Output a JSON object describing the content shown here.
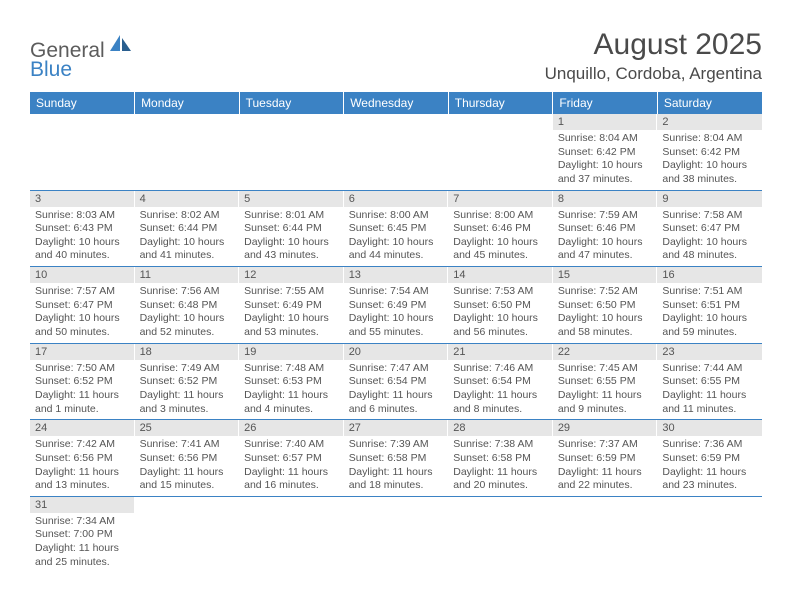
{
  "brand": {
    "name1": "General",
    "name2": "Blue"
  },
  "title": "August 2025",
  "location": "Unquillo, Cordoba, Argentina",
  "colors": {
    "header_bg": "#3b82c4",
    "header_text": "#ffffff",
    "daynum_bg": "#e6e6e6",
    "cell_border": "#3b82c4",
    "text": "#555555",
    "title_text": "#4a4a4a"
  },
  "dayHeaders": [
    "Sunday",
    "Monday",
    "Tuesday",
    "Wednesday",
    "Thursday",
    "Friday",
    "Saturday"
  ],
  "weeks": [
    [
      null,
      null,
      null,
      null,
      null,
      {
        "n": "1",
        "sunrise": "Sunrise: 8:04 AM",
        "sunset": "Sunset: 6:42 PM",
        "daylight": "Daylight: 10 hours and 37 minutes."
      },
      {
        "n": "2",
        "sunrise": "Sunrise: 8:04 AM",
        "sunset": "Sunset: 6:42 PM",
        "daylight": "Daylight: 10 hours and 38 minutes."
      }
    ],
    [
      {
        "n": "3",
        "sunrise": "Sunrise: 8:03 AM",
        "sunset": "Sunset: 6:43 PM",
        "daylight": "Daylight: 10 hours and 40 minutes."
      },
      {
        "n": "4",
        "sunrise": "Sunrise: 8:02 AM",
        "sunset": "Sunset: 6:44 PM",
        "daylight": "Daylight: 10 hours and 41 minutes."
      },
      {
        "n": "5",
        "sunrise": "Sunrise: 8:01 AM",
        "sunset": "Sunset: 6:44 PM",
        "daylight": "Daylight: 10 hours and 43 minutes."
      },
      {
        "n": "6",
        "sunrise": "Sunrise: 8:00 AM",
        "sunset": "Sunset: 6:45 PM",
        "daylight": "Daylight: 10 hours and 44 minutes."
      },
      {
        "n": "7",
        "sunrise": "Sunrise: 8:00 AM",
        "sunset": "Sunset: 6:46 PM",
        "daylight": "Daylight: 10 hours and 45 minutes."
      },
      {
        "n": "8",
        "sunrise": "Sunrise: 7:59 AM",
        "sunset": "Sunset: 6:46 PM",
        "daylight": "Daylight: 10 hours and 47 minutes."
      },
      {
        "n": "9",
        "sunrise": "Sunrise: 7:58 AM",
        "sunset": "Sunset: 6:47 PM",
        "daylight": "Daylight: 10 hours and 48 minutes."
      }
    ],
    [
      {
        "n": "10",
        "sunrise": "Sunrise: 7:57 AM",
        "sunset": "Sunset: 6:47 PM",
        "daylight": "Daylight: 10 hours and 50 minutes."
      },
      {
        "n": "11",
        "sunrise": "Sunrise: 7:56 AM",
        "sunset": "Sunset: 6:48 PM",
        "daylight": "Daylight: 10 hours and 52 minutes."
      },
      {
        "n": "12",
        "sunrise": "Sunrise: 7:55 AM",
        "sunset": "Sunset: 6:49 PM",
        "daylight": "Daylight: 10 hours and 53 minutes."
      },
      {
        "n": "13",
        "sunrise": "Sunrise: 7:54 AM",
        "sunset": "Sunset: 6:49 PM",
        "daylight": "Daylight: 10 hours and 55 minutes."
      },
      {
        "n": "14",
        "sunrise": "Sunrise: 7:53 AM",
        "sunset": "Sunset: 6:50 PM",
        "daylight": "Daylight: 10 hours and 56 minutes."
      },
      {
        "n": "15",
        "sunrise": "Sunrise: 7:52 AM",
        "sunset": "Sunset: 6:50 PM",
        "daylight": "Daylight: 10 hours and 58 minutes."
      },
      {
        "n": "16",
        "sunrise": "Sunrise: 7:51 AM",
        "sunset": "Sunset: 6:51 PM",
        "daylight": "Daylight: 10 hours and 59 minutes."
      }
    ],
    [
      {
        "n": "17",
        "sunrise": "Sunrise: 7:50 AM",
        "sunset": "Sunset: 6:52 PM",
        "daylight": "Daylight: 11 hours and 1 minute."
      },
      {
        "n": "18",
        "sunrise": "Sunrise: 7:49 AM",
        "sunset": "Sunset: 6:52 PM",
        "daylight": "Daylight: 11 hours and 3 minutes."
      },
      {
        "n": "19",
        "sunrise": "Sunrise: 7:48 AM",
        "sunset": "Sunset: 6:53 PM",
        "daylight": "Daylight: 11 hours and 4 minutes."
      },
      {
        "n": "20",
        "sunrise": "Sunrise: 7:47 AM",
        "sunset": "Sunset: 6:54 PM",
        "daylight": "Daylight: 11 hours and 6 minutes."
      },
      {
        "n": "21",
        "sunrise": "Sunrise: 7:46 AM",
        "sunset": "Sunset: 6:54 PM",
        "daylight": "Daylight: 11 hours and 8 minutes."
      },
      {
        "n": "22",
        "sunrise": "Sunrise: 7:45 AM",
        "sunset": "Sunset: 6:55 PM",
        "daylight": "Daylight: 11 hours and 9 minutes."
      },
      {
        "n": "23",
        "sunrise": "Sunrise: 7:44 AM",
        "sunset": "Sunset: 6:55 PM",
        "daylight": "Daylight: 11 hours and 11 minutes."
      }
    ],
    [
      {
        "n": "24",
        "sunrise": "Sunrise: 7:42 AM",
        "sunset": "Sunset: 6:56 PM",
        "daylight": "Daylight: 11 hours and 13 minutes."
      },
      {
        "n": "25",
        "sunrise": "Sunrise: 7:41 AM",
        "sunset": "Sunset: 6:56 PM",
        "daylight": "Daylight: 11 hours and 15 minutes."
      },
      {
        "n": "26",
        "sunrise": "Sunrise: 7:40 AM",
        "sunset": "Sunset: 6:57 PM",
        "daylight": "Daylight: 11 hours and 16 minutes."
      },
      {
        "n": "27",
        "sunrise": "Sunrise: 7:39 AM",
        "sunset": "Sunset: 6:58 PM",
        "daylight": "Daylight: 11 hours and 18 minutes."
      },
      {
        "n": "28",
        "sunrise": "Sunrise: 7:38 AM",
        "sunset": "Sunset: 6:58 PM",
        "daylight": "Daylight: 11 hours and 20 minutes."
      },
      {
        "n": "29",
        "sunrise": "Sunrise: 7:37 AM",
        "sunset": "Sunset: 6:59 PM",
        "daylight": "Daylight: 11 hours and 22 minutes."
      },
      {
        "n": "30",
        "sunrise": "Sunrise: 7:36 AM",
        "sunset": "Sunset: 6:59 PM",
        "daylight": "Daylight: 11 hours and 23 minutes."
      }
    ],
    [
      {
        "n": "31",
        "sunrise": "Sunrise: 7:34 AM",
        "sunset": "Sunset: 7:00 PM",
        "daylight": "Daylight: 11 hours and 25 minutes."
      },
      null,
      null,
      null,
      null,
      null,
      null
    ]
  ]
}
